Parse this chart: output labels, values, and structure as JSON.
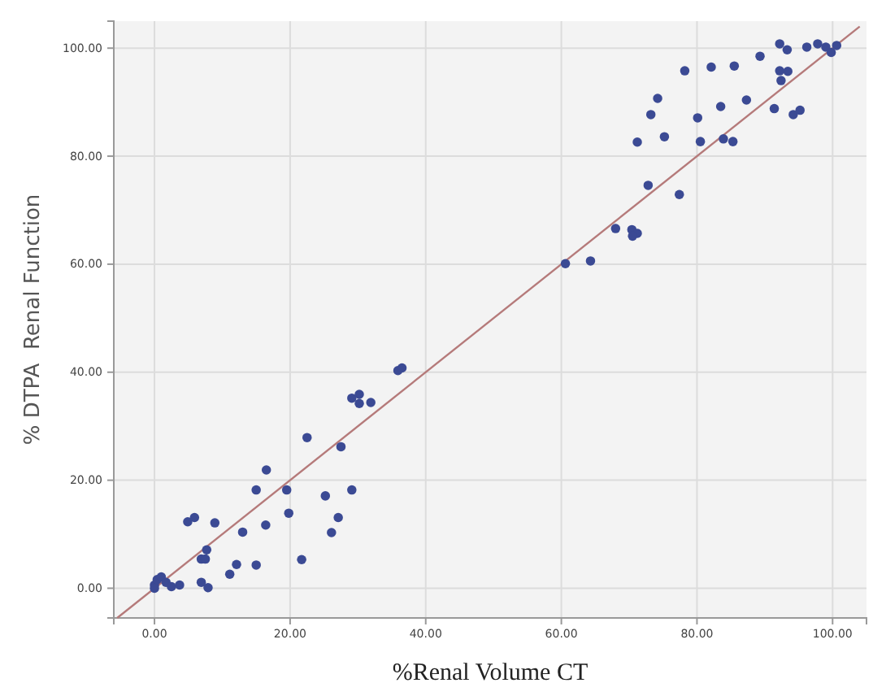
{
  "chart_data": {
    "type": "scatter",
    "xlabel": "%Renal Volume CT",
    "ylabel": "% DTPA  Renal Function",
    "xlim": [
      -6,
      105
    ],
    "ylim": [
      -5.5,
      105
    ],
    "xticks": [
      {
        "value": 0,
        "label": "0.00"
      },
      {
        "value": 20,
        "label": "20.00"
      },
      {
        "value": 40,
        "label": "40.00"
      },
      {
        "value": 60,
        "label": "60.00"
      },
      {
        "value": 80,
        "label": "80.00"
      },
      {
        "value": 100,
        "label": "100.00"
      }
    ],
    "yticks": [
      {
        "value": 0,
        "label": "0.00"
      },
      {
        "value": 20,
        "label": "20.00"
      },
      {
        "value": 40,
        "label": "40.00"
      },
      {
        "value": 60,
        "label": "60.00"
      },
      {
        "value": 80,
        "label": "80.00"
      },
      {
        "value": 100,
        "label": "100.00"
      }
    ],
    "grid": true,
    "series": [
      {
        "marker": "circle",
        "color": "#3b4a94",
        "x": [
          0,
          0.4,
          1,
          1.7,
          2.5,
          3.7,
          0,
          4.9,
          5.9,
          8.9,
          6.9,
          7.7,
          7.5,
          6.9,
          7.9,
          11.1,
          12.1,
          13,
          15,
          15,
          16.5,
          16.4,
          19.5,
          19.8,
          21.7,
          22.5,
          25.2,
          26.1,
          27.1,
          27.5,
          29.1,
          29.1,
          30.2,
          30.2,
          31.9,
          35.9,
          36.5,
          60.6,
          64.3,
          68,
          70.4,
          71.2,
          70.5,
          72.8,
          77.4,
          71.2,
          75.2,
          80.5,
          83.9,
          85.3,
          73.2,
          74.2,
          80.1,
          83.5,
          87.3,
          91.4,
          94.2,
          95.2,
          78.2,
          82.1,
          85.5,
          89.3,
          92.2,
          93.3,
          92.2,
          93.4,
          92.4,
          96.2,
          97.8,
          99,
          99.8,
          100.6
        ],
        "values": [
          0.6,
          1.6,
          2.1,
          1.1,
          0.3,
          0.6,
          0,
          12.3,
          13.1,
          12.1,
          5.4,
          7.1,
          5.4,
          1.1,
          0.1,
          2.6,
          4.4,
          10.4,
          4.3,
          18.2,
          21.9,
          11.7,
          18.2,
          13.9,
          5.3,
          27.9,
          17.1,
          10.3,
          13.1,
          26.2,
          18.2,
          35.2,
          35.9,
          34.2,
          34.4,
          40.3,
          40.8,
          60.1,
          60.6,
          66.6,
          66.4,
          65.7,
          65.2,
          74.6,
          72.9,
          82.6,
          83.6,
          82.7,
          83.2,
          82.7,
          87.7,
          90.7,
          87.1,
          89.2,
          90.4,
          88.8,
          87.7,
          88.5,
          95.8,
          96.5,
          96.7,
          98.5,
          100.8,
          99.7,
          95.8,
          95.7,
          94,
          100.2,
          100.8,
          100.2,
          99.2,
          100.5
        ]
      },
      {
        "type": "line",
        "color": "#b57a7a",
        "x": [
          -5.5,
          104
        ],
        "values": [
          -5.5,
          104
        ]
      }
    ]
  }
}
